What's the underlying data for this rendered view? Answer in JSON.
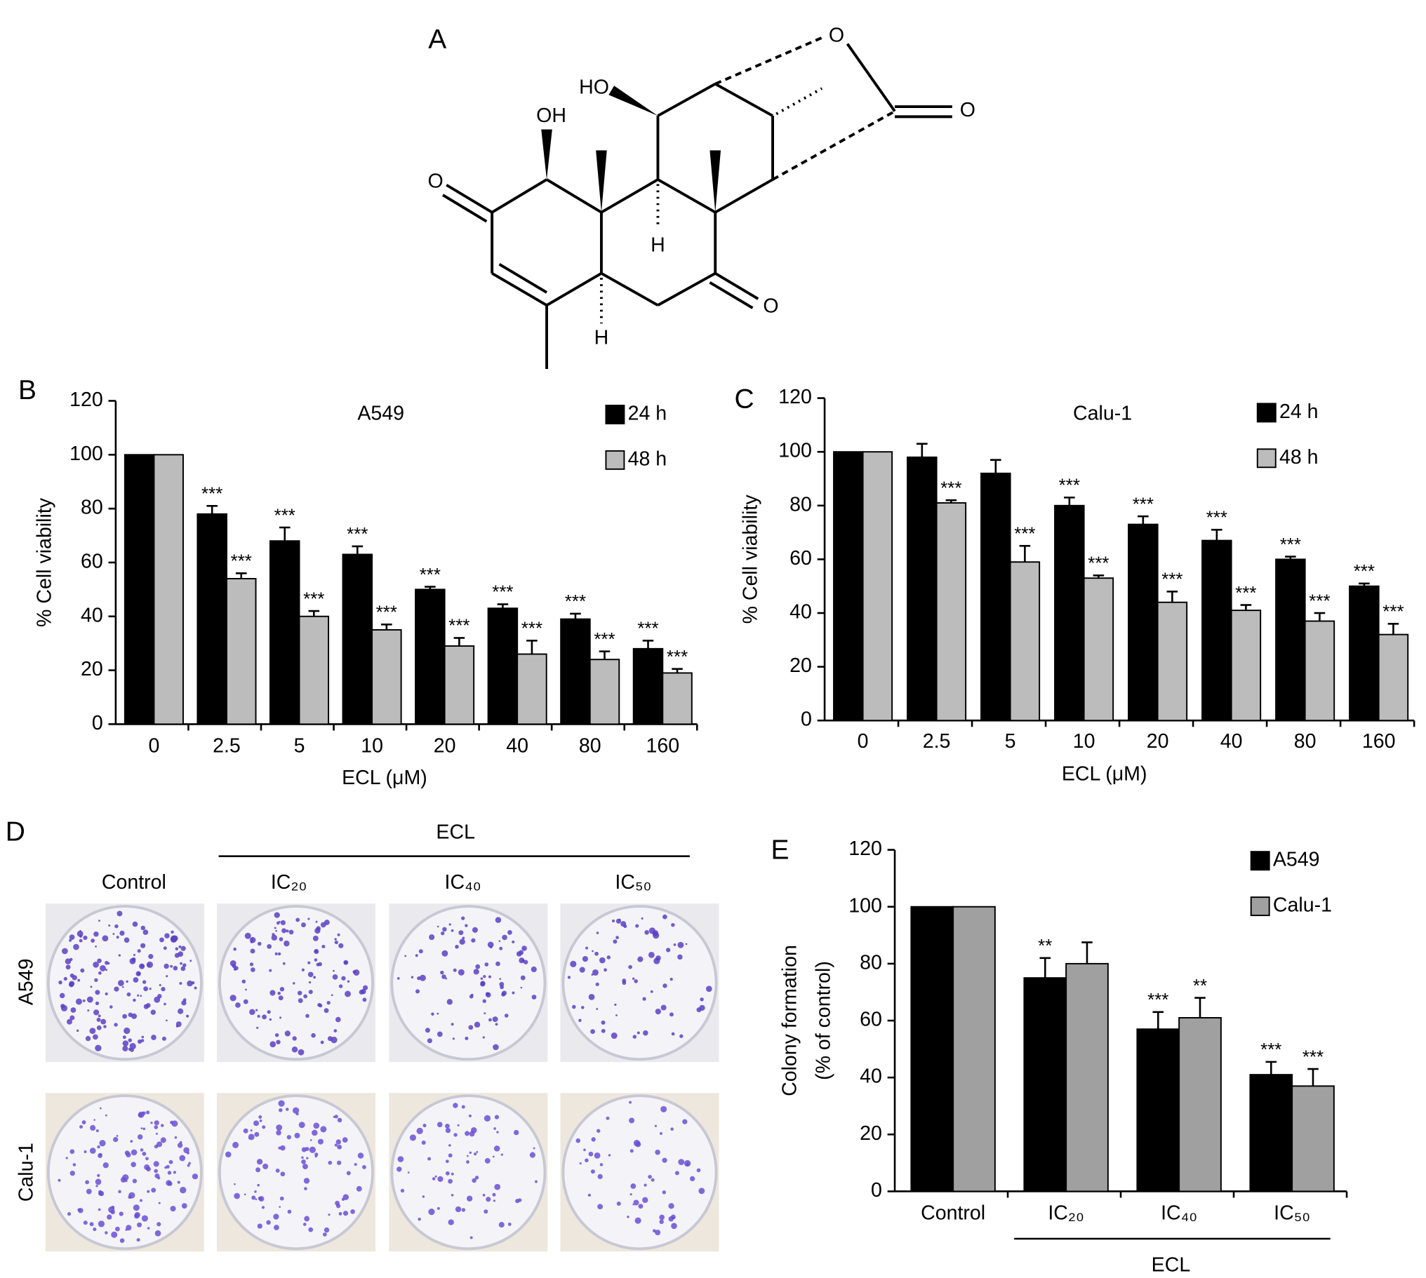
{
  "panels": {
    "a": "A",
    "b": "B",
    "c": "C",
    "d": "D",
    "e": "E"
  },
  "structure": {
    "labels": [
      "O",
      "HO",
      "OH",
      "O",
      "H",
      "H",
      "O",
      "O"
    ]
  },
  "colony": {
    "group": "ECL",
    "columns": [
      "Control",
      "IC₂₀",
      "IC₄₀",
      "IC₅₀"
    ],
    "rows": [
      "A549",
      "Calu-1"
    ]
  },
  "chart_data": [
    {
      "type": "bar",
      "title": "A549",
      "xlabel": "ECL (μM)",
      "ylabel": "% Cell viability",
      "categories": [
        "0",
        "2.5",
        "5",
        "10",
        "20",
        "40",
        "80",
        "160"
      ],
      "series": [
        {
          "name": "24 h",
          "color": "#000000",
          "values": [
            100,
            78,
            68,
            63,
            50,
            43,
            39,
            28
          ],
          "errors": [
            0,
            3,
            5,
            3,
            1,
            1.5,
            2,
            3
          ],
          "annotations": [
            null,
            "***",
            "***",
            "***",
            "***",
            "***",
            "***",
            "***"
          ]
        },
        {
          "name": "48 h",
          "color": "#bcbcbc",
          "values": [
            100,
            54,
            40,
            35,
            29,
            26,
            24,
            19
          ],
          "errors": [
            0,
            2,
            2,
            2,
            3,
            5,
            3,
            1.5
          ],
          "annotations": [
            null,
            "***",
            "***",
            "***",
            "***",
            "***",
            "***",
            "***"
          ]
        }
      ],
      "ylim": [
        0,
        120
      ],
      "yticks": [
        0,
        20,
        40,
        60,
        80,
        100,
        120
      ],
      "legend": "upper right"
    },
    {
      "type": "bar",
      "title": "Calu-1",
      "xlabel": "ECL (μM)",
      "ylabel": "% Cell viability",
      "categories": [
        "0",
        "2.5",
        "5",
        "10",
        "20",
        "40",
        "80",
        "160"
      ],
      "series": [
        {
          "name": "24 h",
          "color": "#000000",
          "values": [
            100,
            98,
            92,
            80,
            73,
            67,
            60,
            50
          ],
          "errors": [
            0,
            5,
            5,
            3,
            3,
            4,
            1,
            1
          ],
          "annotations": [
            null,
            null,
            null,
            "***",
            "***",
            "***",
            "***",
            "***"
          ]
        },
        {
          "name": "48 h",
          "color": "#bcbcbc",
          "values": [
            100,
            81,
            59,
            53,
            44,
            41,
            37,
            32
          ],
          "errors": [
            0,
            1,
            6,
            1,
            4,
            2,
            3,
            4
          ],
          "annotations": [
            null,
            "***",
            "***",
            "***",
            "***",
            "***",
            "***",
            "***"
          ]
        }
      ],
      "ylim": [
        0,
        120
      ],
      "yticks": [
        0,
        20,
        40,
        60,
        80,
        100,
        120
      ],
      "legend": "upper right"
    },
    {
      "type": "bar",
      "xlabel": "ECL",
      "ylabel": [
        "Colony formation",
        "(% of control)"
      ],
      "categories": [
        "Control",
        "IC₂₀",
        "IC₄₀",
        "IC₅₀"
      ],
      "series": [
        {
          "name": "A549",
          "color": "#000000",
          "values": [
            100,
            75,
            57,
            41
          ],
          "errors": [
            0,
            7,
            6,
            4.5
          ],
          "annotations": [
            null,
            "**",
            "***",
            "***"
          ]
        },
        {
          "name": "Calu-1",
          "color": "#a0a0a0",
          "values": [
            100,
            80,
            61,
            37
          ],
          "errors": [
            0,
            7.5,
            7,
            6
          ],
          "annotations": [
            null,
            null,
            "**",
            "***"
          ]
        }
      ],
      "ylim": [
        0,
        120
      ],
      "yticks": [
        0,
        20,
        40,
        60,
        80,
        100,
        120
      ],
      "legend": "upper right"
    }
  ]
}
